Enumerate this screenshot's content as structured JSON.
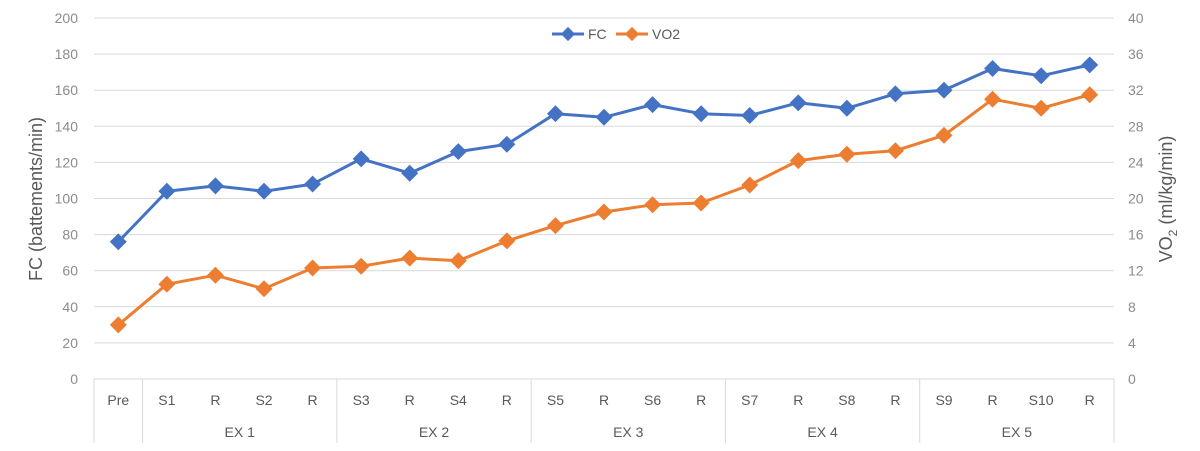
{
  "chart_data": {
    "type": "line",
    "categories": [
      "Pre",
      "S1",
      "R",
      "S2",
      "R",
      "S3",
      "R",
      "S4",
      "R",
      "S5",
      "R",
      "S6",
      "R",
      "S7",
      "R",
      "S8",
      "R",
      "S9",
      "R",
      "S10",
      "R"
    ],
    "groups": [
      {
        "label": "",
        "span": 1
      },
      {
        "label": "EX 1",
        "span": 4
      },
      {
        "label": "EX 2",
        "span": 4
      },
      {
        "label": "EX 3",
        "span": 4
      },
      {
        "label": "EX 4",
        "span": 4
      },
      {
        "label": "EX 5",
        "span": 4
      }
    ],
    "series": [
      {
        "name": "FC",
        "axis": "left",
        "color": "#4472C4",
        "values": [
          76,
          104,
          107,
          104,
          108,
          122,
          114,
          126,
          130,
          147,
          145,
          152,
          147,
          146,
          153,
          150,
          158,
          160,
          172,
          168,
          174
        ]
      },
      {
        "name": "VO2",
        "axis": "right",
        "color": "#ED7D31",
        "values": [
          6.0,
          10.5,
          11.5,
          10.0,
          12.3,
          12.5,
          13.4,
          13.1,
          15.3,
          17.0,
          18.5,
          19.3,
          19.5,
          21.5,
          24.2,
          24.9,
          25.3,
          27.0,
          31.0,
          30.0,
          31.5
        ]
      }
    ],
    "y_left": {
      "label_main": "FC (battements/min)",
      "min": 0,
      "max": 200,
      "ticks": [
        "0",
        "20",
        "40",
        "60",
        "80",
        "100",
        "120",
        "140",
        "160",
        "180",
        "200"
      ]
    },
    "y_right": {
      "label_prefix": "VO",
      "label_sub": "2",
      "label_suffix": " (ml/kg/min)",
      "min": 0,
      "max": 40,
      "ticks": [
        "0",
        "4",
        "8",
        "12",
        "16",
        "20",
        "24",
        "28",
        "32",
        "36",
        "40"
      ]
    },
    "legend_position": "top-center",
    "grid": true
  }
}
